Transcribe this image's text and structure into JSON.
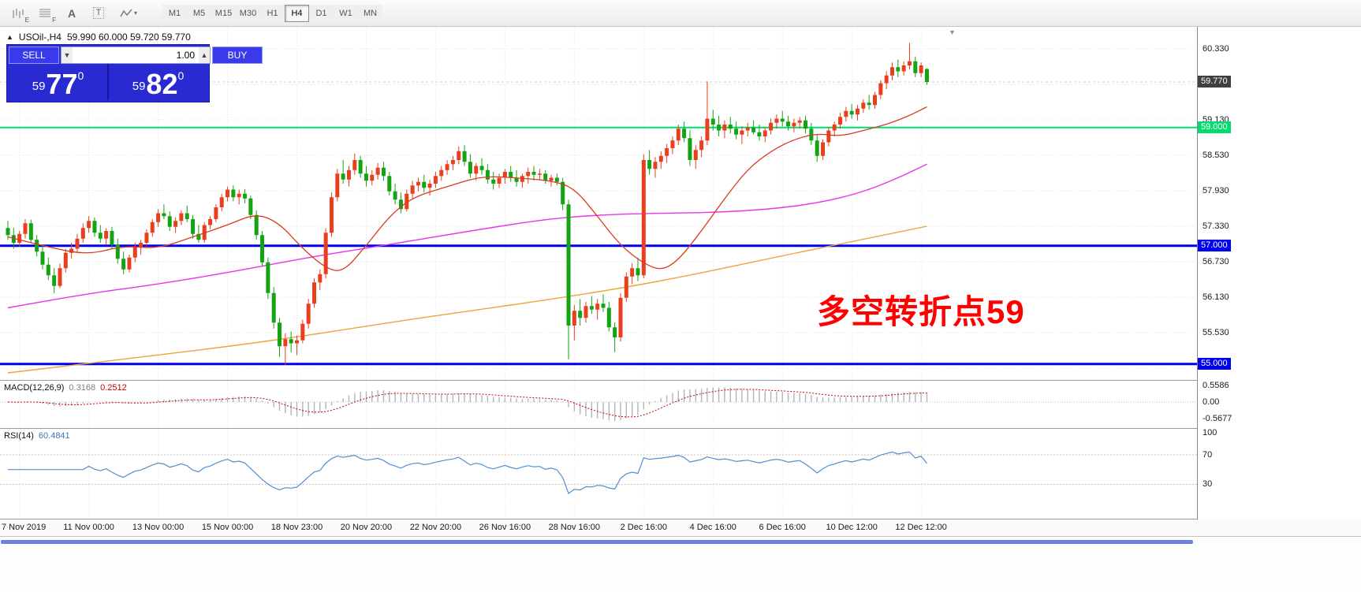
{
  "toolbar": {
    "timeframes": [
      "M1",
      "M5",
      "M15",
      "M30",
      "H1",
      "H4",
      "D1",
      "W1",
      "MN"
    ],
    "active_timeframe": "H4",
    "text_tool": "A",
    "template_tool": "T",
    "shortcut_e": "E",
    "shortcut_f": "F"
  },
  "chart": {
    "title": "USOil-,H4",
    "ohlc": "59.990 60.000 59.720 59.770",
    "annotation": {
      "text": "多空转折点59",
      "color": "#ff0000"
    },
    "current_price": {
      "label": "59.770",
      "color": "#3f3f3f"
    },
    "levels": [
      {
        "price": 59.0,
        "label": "59.000",
        "color": "#00dd6e",
        "width": 2
      },
      {
        "price": 57.0,
        "label": "57.000",
        "color": "#0000f0",
        "width": 3
      },
      {
        "price": 55.0,
        "label": "55.000",
        "color": "#0000f0",
        "width": 3
      }
    ],
    "scale_ticks": [
      {
        "label": "60.330",
        "price": 60.33
      },
      {
        "label": "59.130",
        "price": 59.13
      },
      {
        "label": "58.530",
        "price": 58.53
      },
      {
        "label": "57.930",
        "price": 57.93
      },
      {
        "label": "57.330",
        "price": 57.33
      },
      {
        "label": "56.730",
        "price": 56.73
      },
      {
        "label": "56.130",
        "price": 56.13
      },
      {
        "label": "55.530",
        "price": 55.53
      }
    ],
    "grid_prices": [
      60.33,
      59.73,
      59.13,
      58.53,
      57.93,
      57.33,
      56.73,
      56.13,
      55.53,
      54.93
    ]
  },
  "trade_panel": {
    "sell_label": "SELL",
    "buy_label": "BUY",
    "volume": "1.00",
    "bid": {
      "small": "59",
      "big": "77",
      "sup": "0"
    },
    "ask": {
      "small": "59",
      "big": "82",
      "sup": "0"
    }
  },
  "macd": {
    "name": "MACD(12,26,9)",
    "value1": "0.3168",
    "value2": "0.2512",
    "ticks": [
      {
        "label": "0.5586",
        "v": 0.5586
      },
      {
        "label": "0.00",
        "v": 0
      },
      {
        "label": "-0.5677",
        "v": -0.5677
      }
    ]
  },
  "rsi": {
    "name": "RSI(14)",
    "value": "60.4841",
    "levels": [
      70,
      30
    ],
    "ticks": [
      {
        "label": "100",
        "v": 100
      },
      {
        "label": "70",
        "v": 70
      },
      {
        "label": "30",
        "v": 30
      }
    ]
  },
  "time_axis": [
    {
      "i": 2,
      "label": "7 Nov 2019"
    },
    {
      "i": 14,
      "label": "11 Nov 00:00"
    },
    {
      "i": 26,
      "label": "13 Nov 00:00"
    },
    {
      "i": 38,
      "label": "15 Nov 00:00"
    },
    {
      "i": 50,
      "label": "18 Nov 23:00"
    },
    {
      "i": 62,
      "label": "20 Nov 20:00"
    },
    {
      "i": 74,
      "label": "22 Nov 20:00"
    },
    {
      "i": 86,
      "label": "26 Nov 16:00"
    },
    {
      "i": 98,
      "label": "28 Nov 16:00"
    },
    {
      "i": 110,
      "label": "2 Dec 16:00"
    },
    {
      "i": 122,
      "label": "4 Dec 16:00"
    },
    {
      "i": 134,
      "label": "6 Dec 16:00"
    },
    {
      "i": 146,
      "label": "10 Dec 12:00"
    },
    {
      "i": 158,
      "label": "12 Dec 12:00"
    }
  ],
  "chart_data": {
    "type": "candlestick",
    "symbol": "USOil-",
    "timeframe": "H4",
    "last_price": 59.77,
    "price_range": [
      54.78,
      60.7
    ],
    "colors": {
      "up": "#ea3f1e",
      "down": "#13a313",
      "ma_red": "#d93a22",
      "ma_magenta": "#e833e8",
      "ma_orange": "#eba43d",
      "macd_bars": "#b4b4b4",
      "macd_signal": "#cc0000",
      "rsi": "#4f8fd0"
    },
    "candles": [
      [
        57.3,
        57.42,
        57.1,
        57.18
      ],
      [
        57.18,
        57.3,
        56.95,
        57.05
      ],
      [
        57.05,
        57.25,
        56.98,
        57.2
      ],
      [
        57.2,
        57.45,
        57.12,
        57.38
      ],
      [
        57.38,
        57.44,
        57.05,
        57.1
      ],
      [
        57.1,
        57.18,
        56.82,
        56.9
      ],
      [
        56.9,
        57.0,
        56.6,
        56.68
      ],
      [
        56.68,
        56.8,
        56.42,
        56.5
      ],
      [
        56.5,
        56.62,
        56.2,
        56.32
      ],
      [
        56.32,
        56.7,
        56.28,
        56.62
      ],
      [
        56.62,
        56.95,
        56.55,
        56.88
      ],
      [
        56.88,
        57.05,
        56.78,
        56.95
      ],
      [
        56.95,
        57.2,
        56.88,
        57.12
      ],
      [
        57.12,
        57.38,
        57.05,
        57.3
      ],
      [
        57.3,
        57.5,
        57.22,
        57.42
      ],
      [
        57.42,
        57.48,
        57.15,
        57.22
      ],
      [
        57.22,
        57.35,
        57.05,
        57.12
      ],
      [
        57.12,
        57.3,
        57.02,
        57.25
      ],
      [
        57.25,
        57.32,
        56.95,
        57.02
      ],
      [
        57.02,
        57.12,
        56.7,
        56.78
      ],
      [
        56.78,
        56.9,
        56.52,
        56.6
      ],
      [
        56.6,
        56.85,
        56.55,
        56.8
      ],
      [
        56.8,
        57.05,
        56.72,
        56.98
      ],
      [
        56.98,
        57.1,
        56.85,
        57.05
      ],
      [
        57.05,
        57.28,
        56.98,
        57.22
      ],
      [
        57.22,
        57.45,
        57.15,
        57.4
      ],
      [
        57.4,
        57.62,
        57.32,
        57.55
      ],
      [
        57.55,
        57.7,
        57.45,
        57.5
      ],
      [
        57.5,
        57.58,
        57.25,
        57.32
      ],
      [
        57.32,
        57.48,
        57.22,
        57.42
      ],
      [
        57.42,
        57.6,
        57.35,
        57.55
      ],
      [
        57.55,
        57.68,
        57.4,
        57.45
      ],
      [
        57.45,
        57.52,
        57.12,
        57.2
      ],
      [
        57.2,
        57.35,
        57.05,
        57.1
      ],
      [
        57.1,
        57.4,
        57.05,
        57.35
      ],
      [
        57.35,
        57.5,
        57.28,
        57.45
      ],
      [
        57.45,
        57.7,
        57.4,
        57.65
      ],
      [
        57.65,
        57.88,
        57.58,
        57.82
      ],
      [
        57.82,
        58.0,
        57.75,
        57.95
      ],
      [
        57.95,
        58.02,
        57.75,
        57.82
      ],
      [
        57.82,
        57.95,
        57.7,
        57.88
      ],
      [
        57.88,
        57.96,
        57.72,
        57.8
      ],
      [
        57.8,
        57.85,
        57.45,
        57.52
      ],
      [
        57.52,
        57.6,
        57.1,
        57.18
      ],
      [
        57.18,
        57.25,
        56.65,
        56.72
      ],
      [
        56.72,
        56.8,
        56.1,
        56.2
      ],
      [
        56.2,
        56.3,
        55.6,
        55.7
      ],
      [
        55.7,
        55.78,
        55.12,
        55.3
      ],
      [
        55.3,
        55.52,
        54.98,
        55.42
      ],
      [
        55.42,
        55.55,
        55.2,
        55.35
      ],
      [
        55.35,
        55.48,
        55.15,
        55.4
      ],
      [
        55.4,
        55.75,
        55.35,
        55.68
      ],
      [
        55.68,
        56.1,
        55.6,
        56.02
      ],
      [
        56.02,
        56.45,
        55.95,
        56.38
      ],
      [
        56.38,
        56.6,
        56.25,
        56.52
      ],
      [
        56.52,
        57.3,
        56.45,
        57.22
      ],
      [
        57.22,
        57.9,
        57.15,
        57.82
      ],
      [
        57.82,
        58.3,
        57.75,
        58.22
      ],
      [
        58.22,
        58.45,
        58.05,
        58.12
      ],
      [
        58.12,
        58.35,
        58.0,
        58.28
      ],
      [
        58.28,
        58.56,
        58.2,
        58.45
      ],
      [
        58.45,
        58.52,
        58.15,
        58.22
      ],
      [
        58.22,
        58.35,
        58.0,
        58.1
      ],
      [
        58.1,
        58.28,
        58.02,
        58.2
      ],
      [
        58.2,
        58.4,
        58.12,
        58.32
      ],
      [
        58.32,
        58.42,
        58.1,
        58.18
      ],
      [
        58.18,
        58.25,
        57.85,
        57.92
      ],
      [
        57.92,
        58.05,
        57.7,
        57.78
      ],
      [
        57.78,
        57.9,
        57.55,
        57.62
      ],
      [
        57.62,
        57.95,
        57.58,
        57.88
      ],
      [
        57.88,
        58.1,
        57.8,
        58.02
      ],
      [
        58.02,
        58.15,
        57.92,
        58.08
      ],
      [
        58.08,
        58.2,
        57.9,
        57.98
      ],
      [
        57.98,
        58.12,
        57.85,
        58.05
      ],
      [
        58.05,
        58.25,
        57.98,
        58.18
      ],
      [
        58.18,
        58.35,
        58.1,
        58.28
      ],
      [
        58.28,
        58.45,
        58.2,
        58.38
      ],
      [
        58.38,
        58.52,
        58.28,
        58.45
      ],
      [
        58.45,
        58.68,
        58.38,
        58.6
      ],
      [
        58.6,
        58.7,
        58.35,
        58.42
      ],
      [
        58.42,
        58.55,
        58.15,
        58.22
      ],
      [
        58.22,
        58.4,
        58.1,
        58.35
      ],
      [
        58.35,
        58.48,
        58.2,
        58.28
      ],
      [
        58.28,
        58.38,
        58.05,
        58.12
      ],
      [
        58.12,
        58.25,
        57.95,
        58.05
      ],
      [
        58.05,
        58.22,
        57.98,
        58.15
      ],
      [
        58.15,
        58.3,
        58.05,
        58.25
      ],
      [
        58.25,
        58.35,
        58.08,
        58.15
      ],
      [
        58.15,
        58.28,
        58.0,
        58.08
      ],
      [
        58.08,
        58.22,
        57.98,
        58.18
      ],
      [
        58.18,
        58.32,
        58.05,
        58.25
      ],
      [
        58.25,
        58.35,
        58.1,
        58.2
      ],
      [
        58.2,
        58.3,
        58.12,
        58.22
      ],
      [
        58.22,
        58.28,
        58.05,
        58.1
      ],
      [
        58.1,
        58.2,
        58.0,
        58.15
      ],
      [
        58.15,
        58.22,
        58.02,
        58.08
      ],
      [
        58.08,
        58.15,
        57.6,
        57.7
      ],
      [
        57.7,
        57.78,
        55.08,
        55.65
      ],
      [
        55.65,
        56.0,
        55.4,
        55.9
      ],
      [
        55.9,
        56.1,
        55.65,
        55.78
      ],
      [
        55.78,
        56.05,
        55.7,
        55.98
      ],
      [
        55.98,
        56.15,
        55.85,
        55.92
      ],
      [
        55.92,
        56.1,
        55.75,
        56.02
      ],
      [
        56.02,
        56.18,
        55.88,
        55.95
      ],
      [
        55.95,
        56.05,
        55.55,
        55.62
      ],
      [
        55.62,
        55.7,
        55.2,
        55.45
      ],
      [
        55.45,
        56.2,
        55.38,
        56.12
      ],
      [
        56.12,
        56.55,
        56.05,
        56.48
      ],
      [
        56.48,
        56.7,
        56.35,
        56.62
      ],
      [
        56.62,
        56.8,
        56.4,
        56.5
      ],
      [
        56.5,
        58.55,
        56.45,
        58.45
      ],
      [
        58.45,
        58.62,
        58.2,
        58.3
      ],
      [
        58.3,
        58.5,
        58.15,
        58.42
      ],
      [
        58.42,
        58.6,
        58.3,
        58.52
      ],
      [
        58.52,
        58.72,
        58.4,
        58.65
      ],
      [
        58.65,
        58.85,
        58.55,
        58.78
      ],
      [
        58.78,
        59.05,
        58.7,
        58.98
      ],
      [
        58.98,
        59.1,
        58.75,
        58.82
      ],
      [
        58.82,
        58.95,
        58.35,
        58.45
      ],
      [
        58.45,
        58.7,
        58.3,
        58.62
      ],
      [
        58.62,
        58.85,
        58.5,
        58.78
      ],
      [
        58.78,
        59.78,
        58.7,
        59.15
      ],
      [
        59.15,
        59.3,
        58.95,
        59.05
      ],
      [
        59.05,
        59.2,
        58.85,
        58.95
      ],
      [
        58.95,
        59.12,
        58.82,
        59.05
      ],
      [
        59.05,
        59.18,
        58.9,
        58.98
      ],
      [
        58.98,
        59.1,
        58.8,
        58.88
      ],
      [
        58.88,
        59.02,
        58.72,
        58.95
      ],
      [
        58.95,
        59.08,
        58.85,
        59.0
      ],
      [
        59.0,
        59.12,
        58.88,
        58.92
      ],
      [
        58.92,
        59.05,
        58.78,
        58.85
      ],
      [
        58.85,
        59.0,
        58.75,
        58.95
      ],
      [
        58.95,
        59.15,
        58.88,
        59.08
      ],
      [
        59.08,
        59.22,
        58.98,
        59.15
      ],
      [
        59.15,
        59.28,
        59.02,
        59.1
      ],
      [
        59.1,
        59.2,
        58.95,
        59.02
      ],
      [
        59.02,
        59.15,
        58.92,
        59.08
      ],
      [
        59.08,
        59.18,
        58.98,
        59.12
      ],
      [
        59.12,
        59.2,
        58.9,
        58.98
      ],
      [
        58.98,
        59.08,
        58.7,
        58.78
      ],
      [
        58.78,
        58.88,
        58.42,
        58.52
      ],
      [
        58.52,
        58.8,
        58.45,
        58.75
      ],
      [
        58.75,
        59.0,
        58.68,
        58.95
      ],
      [
        58.95,
        59.1,
        58.85,
        59.05
      ],
      [
        59.05,
        59.25,
        58.98,
        59.18
      ],
      [
        59.18,
        59.35,
        59.1,
        59.28
      ],
      [
        59.28,
        59.4,
        59.15,
        59.22
      ],
      [
        59.22,
        59.38,
        59.12,
        59.32
      ],
      [
        59.32,
        59.48,
        59.25,
        59.42
      ],
      [
        59.42,
        59.55,
        59.3,
        59.38
      ],
      [
        59.38,
        59.6,
        59.32,
        59.55
      ],
      [
        59.55,
        59.8,
        59.48,
        59.75
      ],
      [
        59.75,
        59.95,
        59.65,
        59.88
      ],
      [
        59.88,
        60.1,
        59.8,
        60.02
      ],
      [
        60.02,
        60.15,
        59.85,
        59.95
      ],
      [
        59.95,
        60.12,
        59.88,
        60.05
      ],
      [
        60.05,
        60.43,
        59.98,
        60.12
      ],
      [
        60.12,
        60.2,
        59.85,
        59.92
      ],
      [
        59.92,
        60.1,
        59.85,
        60.05
      ],
      [
        59.99,
        60.0,
        59.72,
        59.77
      ]
    ],
    "ma_red": [
      [
        0,
        57.15
      ],
      [
        8,
        56.95
      ],
      [
        14,
        56.85
      ],
      [
        20,
        57.0
      ],
      [
        26,
        56.95
      ],
      [
        32,
        57.15
      ],
      [
        38,
        57.35
      ],
      [
        43,
        57.55
      ],
      [
        47,
        57.38
      ],
      [
        51,
        56.95
      ],
      [
        55,
        56.62
      ],
      [
        58,
        56.55
      ],
      [
        62,
        57.0
      ],
      [
        66,
        57.5
      ],
      [
        70,
        57.82
      ],
      [
        76,
        58.0
      ],
      [
        82,
        58.18
      ],
      [
        88,
        58.15
      ],
      [
        94,
        58.1
      ],
      [
        98,
        57.98
      ],
      [
        102,
        57.5
      ],
      [
        106,
        57.0
      ],
      [
        110,
        56.7
      ],
      [
        113,
        56.58
      ],
      [
        116,
        56.75
      ],
      [
        120,
        57.25
      ],
      [
        124,
        57.8
      ],
      [
        128,
        58.3
      ],
      [
        132,
        58.6
      ],
      [
        136,
        58.8
      ],
      [
        140,
        58.9
      ],
      [
        144,
        58.85
      ],
      [
        148,
        58.95
      ],
      [
        152,
        59.05
      ],
      [
        156,
        59.2
      ],
      [
        159,
        59.35
      ]
    ],
    "ma_magenta": [
      [
        0,
        55.95
      ],
      [
        13,
        56.18
      ],
      [
        26,
        56.35
      ],
      [
        40,
        56.58
      ],
      [
        53,
        56.82
      ],
      [
        66,
        57.02
      ],
      [
        80,
        57.25
      ],
      [
        93,
        57.45
      ],
      [
        102,
        57.52
      ],
      [
        112,
        57.55
      ],
      [
        122,
        57.56
      ],
      [
        132,
        57.62
      ],
      [
        140,
        57.72
      ],
      [
        147,
        57.88
      ],
      [
        153,
        58.1
      ],
      [
        159,
        58.38
      ]
    ],
    "ma_orange": [
      [
        0,
        54.85
      ],
      [
        13,
        55.0
      ],
      [
        26,
        55.15
      ],
      [
        40,
        55.32
      ],
      [
        53,
        55.5
      ],
      [
        66,
        55.7
      ],
      [
        80,
        55.9
      ],
      [
        93,
        56.08
      ],
      [
        106,
        56.28
      ],
      [
        118,
        56.5
      ],
      [
        130,
        56.75
      ],
      [
        140,
        56.95
      ],
      [
        150,
        57.15
      ],
      [
        159,
        57.33
      ]
    ]
  }
}
